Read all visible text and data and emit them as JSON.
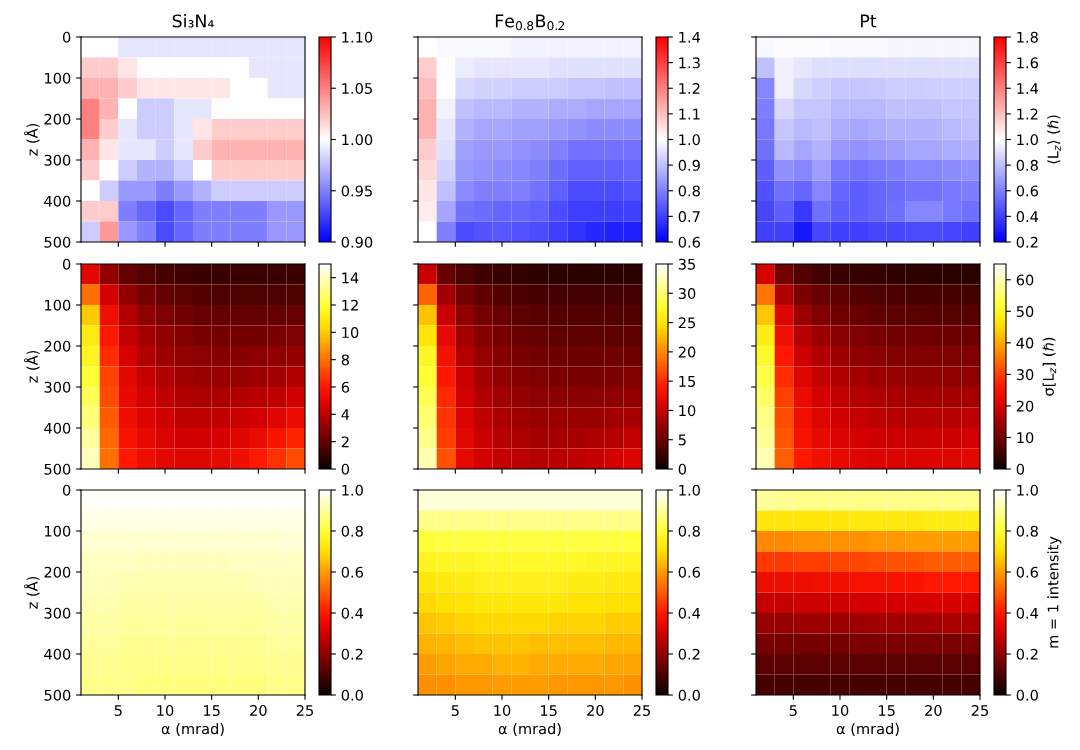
{
  "chart_data": [
    {
      "type": "heatmap",
      "title": "Si₃N₄",
      "ylabel": "z (Å)",
      "x": [
        2,
        4,
        6,
        8,
        10,
        12,
        14,
        16,
        18,
        20,
        22,
        24
      ],
      "y": [
        25,
        75,
        125,
        175,
        225,
        275,
        325,
        375,
        425,
        475
      ],
      "cells": [
        [
          1.0,
          1.0,
          0.99,
          0.99,
          0.99,
          0.99,
          0.99,
          0.99,
          0.99,
          0.99,
          0.99,
          0.99
        ],
        [
          1.02,
          1.02,
          1.01,
          1.0,
          1.0,
          1.0,
          1.0,
          1.0,
          1.0,
          0.99,
          0.99,
          0.99
        ],
        [
          1.03,
          1.03,
          1.02,
          1.01,
          1.01,
          1.01,
          1.01,
          1.01,
          1.0,
          1.0,
          0.99,
          0.99
        ],
        [
          1.05,
          1.03,
          1.0,
          0.98,
          0.98,
          0.99,
          0.99,
          1.0,
          1.0,
          1.0,
          1.0,
          1.0
        ],
        [
          1.05,
          1.02,
          0.99,
          0.98,
          0.98,
          0.99,
          1.01,
          1.02,
          1.02,
          1.02,
          1.02,
          1.02
        ],
        [
          1.03,
          1.01,
          0.99,
          0.99,
          0.98,
          0.99,
          1.02,
          1.03,
          1.03,
          1.03,
          1.03,
          1.03
        ],
        [
          1.02,
          1.0,
          0.98,
          0.97,
          0.97,
          0.98,
          1.0,
          1.02,
          1.02,
          1.02,
          1.02,
          1.02
        ],
        [
          1.0,
          0.98,
          0.96,
          0.96,
          0.95,
          0.96,
          0.97,
          0.98,
          0.98,
          0.98,
          0.98,
          0.98
        ],
        [
          1.02,
          1.02,
          0.95,
          0.94,
          0.93,
          0.94,
          0.95,
          0.95,
          0.95,
          0.95,
          0.96,
          0.96
        ],
        [
          0.98,
          1.04,
          0.96,
          0.95,
          0.93,
          0.94,
          0.95,
          0.95,
          0.95,
          0.95,
          0.96,
          0.96
        ]
      ],
      "colors": [
        "#0000ff",
        "#ffffff",
        "#ff0000"
      ],
      "clim": [
        0.9,
        1.1
      ],
      "cticks": [
        {
          "value": 0.9,
          "label": "0.90"
        },
        {
          "value": 0.95,
          "label": "0.95"
        },
        {
          "value": 1,
          "label": "1.00"
        },
        {
          "value": 1.05,
          "label": "1.05"
        },
        {
          "value": 1.1,
          "label": "1.10"
        }
      ],
      "xlim": [
        1,
        25
      ],
      "xticks": [
        5,
        10,
        15,
        20,
        25
      ],
      "ylim": [
        500,
        0
      ],
      "yticks": [
        0,
        100,
        200,
        300,
        400,
        500
      ],
      "tick_labels": "y"
    },
    {
      "type": "heatmap",
      "title": "Fe$_{0.8}$B$_{0.2}$",
      "x": [
        2,
        4,
        6,
        8,
        10,
        12,
        14,
        16,
        18,
        20,
        22,
        24
      ],
      "y": [
        25,
        75,
        125,
        175,
        225,
        275,
        325,
        375,
        425,
        475
      ],
      "cells": [
        [
          1.0,
          0.99,
          0.99,
          0.99,
          0.99,
          0.98,
          0.98,
          0.98,
          0.98,
          0.98,
          0.98,
          0.98
        ],
        [
          1.08,
          1.0,
          0.97,
          0.96,
          0.96,
          0.96,
          0.96,
          0.95,
          0.95,
          0.95,
          0.95,
          0.95
        ],
        [
          1.1,
          1.0,
          0.94,
          0.93,
          0.93,
          0.92,
          0.92,
          0.92,
          0.91,
          0.91,
          0.9,
          0.9
        ],
        [
          1.12,
          0.98,
          0.9,
          0.89,
          0.89,
          0.88,
          0.88,
          0.87,
          0.87,
          0.86,
          0.86,
          0.86
        ],
        [
          1.12,
          0.96,
          0.88,
          0.86,
          0.86,
          0.85,
          0.85,
          0.84,
          0.83,
          0.82,
          0.82,
          0.82
        ],
        [
          1.08,
          0.95,
          0.85,
          0.84,
          0.84,
          0.83,
          0.82,
          0.8,
          0.78,
          0.78,
          0.78,
          0.78
        ],
        [
          1.06,
          0.93,
          0.84,
          0.83,
          0.82,
          0.81,
          0.8,
          0.77,
          0.75,
          0.75,
          0.75,
          0.76
        ],
        [
          1.04,
          0.9,
          0.82,
          0.8,
          0.8,
          0.8,
          0.78,
          0.75,
          0.72,
          0.72,
          0.72,
          0.73
        ],
        [
          1.03,
          0.86,
          0.78,
          0.77,
          0.76,
          0.76,
          0.75,
          0.72,
          0.7,
          0.7,
          0.7,
          0.7
        ],
        [
          1.0,
          0.8,
          0.72,
          0.73,
          0.74,
          0.73,
          0.72,
          0.7,
          0.68,
          0.66,
          0.65,
          0.65
        ]
      ],
      "colors": [
        "#0000ff",
        "#ffffff",
        "#ff0000"
      ],
      "clim": [
        0.6,
        1.4
      ],
      "cticks": [
        0.6,
        0.7,
        0.8,
        0.9,
        {
          "value": 1,
          "label": "1.0"
        },
        1.1,
        1.2,
        1.3,
        1.4
      ],
      "xlim": [
        1,
        25
      ],
      "xticks": [
        5,
        10,
        15,
        20,
        25
      ],
      "ylim": [
        500,
        0
      ],
      "yticks": [
        0,
        100,
        200,
        300,
        400,
        500
      ],
      "tick_labels": false
    },
    {
      "type": "heatmap",
      "title": "Pt",
      "clabel": "⟨L$_{z}$⟩ (ℏ)",
      "x": [
        2,
        4,
        6,
        8,
        10,
        12,
        14,
        16,
        18,
        20,
        22,
        24
      ],
      "y": [
        25,
        75,
        125,
        175,
        225,
        275,
        325,
        375,
        425,
        475
      ],
      "cells": [
        [
          0.98,
          0.99,
          0.99,
          0.99,
          0.98,
          0.98,
          0.98,
          0.97,
          0.97,
          0.97,
          0.97,
          0.97
        ],
        [
          0.8,
          0.95,
          0.92,
          0.9,
          0.9,
          0.9,
          0.9,
          0.9,
          0.9,
          0.9,
          0.9,
          0.9
        ],
        [
          0.62,
          0.95,
          0.88,
          0.85,
          0.82,
          0.82,
          0.83,
          0.84,
          0.84,
          0.85,
          0.85,
          0.85
        ],
        [
          0.6,
          0.88,
          0.82,
          0.82,
          0.78,
          0.78,
          0.78,
          0.8,
          0.8,
          0.8,
          0.82,
          0.82
        ],
        [
          0.58,
          0.82,
          0.78,
          0.8,
          0.74,
          0.72,
          0.74,
          0.76,
          0.76,
          0.76,
          0.78,
          0.8
        ],
        [
          0.55,
          0.78,
          0.72,
          0.76,
          0.68,
          0.66,
          0.68,
          0.7,
          0.72,
          0.72,
          0.74,
          0.75
        ],
        [
          0.5,
          0.65,
          0.62,
          0.7,
          0.58,
          0.56,
          0.58,
          0.6,
          0.62,
          0.62,
          0.64,
          0.65
        ],
        [
          0.45,
          0.55,
          0.52,
          0.62,
          0.52,
          0.5,
          0.52,
          0.54,
          0.56,
          0.56,
          0.58,
          0.6
        ],
        [
          0.42,
          0.5,
          0.38,
          0.55,
          0.5,
          0.5,
          0.52,
          0.55,
          0.62,
          0.62,
          0.58,
          0.55
        ],
        [
          0.4,
          0.4,
          0.28,
          0.42,
          0.4,
          0.4,
          0.42,
          0.42,
          0.44,
          0.44,
          0.42,
          0.4
        ]
      ],
      "colors": [
        "#0000ff",
        "#ffffff",
        "#ff0000"
      ],
      "clim": [
        0.2,
        1.8
      ],
      "cticks": [
        0.2,
        0.4,
        0.6,
        0.8,
        {
          "value": 1,
          "label": "1.0"
        },
        1.2,
        1.4,
        1.6,
        1.8
      ],
      "xlim": [
        1,
        25
      ],
      "xticks": [
        5,
        10,
        15,
        20,
        25
      ],
      "ylim": [
        500,
        0
      ],
      "yticks": [
        0,
        100,
        200,
        300,
        400,
        500
      ],
      "tick_labels": false
    },
    {
      "type": "heatmap",
      "ylabel": "z (Å)",
      "x": [
        2,
        4,
        6,
        8,
        10,
        12,
        14,
        16,
        18,
        20,
        22,
        24
      ],
      "y": [
        25,
        75,
        125,
        175,
        225,
        275,
        325,
        375,
        425,
        475
      ],
      "cells": [
        [
          5.0,
          3.0,
          2.0,
          1.6,
          1.4,
          1.2,
          1.1,
          1.0,
          1.0,
          1.0,
          1.0,
          1.0
        ],
        [
          8.0,
          4.5,
          3.0,
          2.4,
          2.0,
          1.8,
          1.6,
          1.5,
          1.5,
          1.5,
          1.5,
          1.5
        ],
        [
          10.0,
          5.5,
          3.8,
          3.0,
          2.6,
          2.3,
          2.1,
          2.0,
          2.0,
          2.0,
          2.0,
          2.1
        ],
        [
          11.0,
          6.0,
          4.2,
          3.5,
          3.0,
          2.7,
          2.5,
          2.4,
          2.4,
          2.4,
          2.5,
          2.6
        ],
        [
          11.5,
          6.5,
          4.6,
          3.8,
          3.3,
          3.1,
          2.9,
          2.8,
          2.8,
          2.9,
          3.0,
          3.1
        ],
        [
          12.0,
          7.0,
          5.0,
          4.2,
          3.7,
          3.4,
          3.2,
          3.2,
          3.2,
          3.3,
          3.5,
          3.7
        ],
        [
          12.5,
          7.2,
          5.2,
          4.5,
          4.0,
          3.7,
          3.6,
          3.6,
          3.7,
          3.9,
          4.1,
          4.4
        ],
        [
          13.0,
          7.5,
          5.5,
          4.8,
          4.4,
          4.1,
          4.0,
          4.1,
          4.3,
          4.5,
          4.9,
          5.3
        ],
        [
          13.5,
          7.8,
          5.8,
          5.1,
          4.7,
          4.5,
          4.5,
          4.6,
          4.9,
          5.3,
          5.8,
          6.3
        ],
        [
          14.0,
          8.0,
          6.0,
          5.4,
          5.0,
          4.9,
          4.9,
          5.1,
          5.5,
          6.0,
          6.6,
          7.2
        ]
      ],
      "colors": [
        "#0b0000",
        "#4e0000",
        "#900000",
        "#d30000",
        "#ff1700",
        "#ff5a00",
        "#ff9d00",
        "#ffe000",
        "#ffff36",
        "#ffff9b",
        "#ffffff"
      ],
      "clim": [
        0,
        15
      ],
      "cticks": [
        0,
        2,
        4,
        6,
        8,
        10,
        12,
        14
      ],
      "xlim": [
        1,
        25
      ],
      "xticks": [
        5,
        10,
        15,
        20,
        25
      ],
      "ylim": [
        500,
        0
      ],
      "yticks": [
        0,
        100,
        200,
        300,
        400,
        500
      ],
      "tick_labels": "y"
    },
    {
      "type": "heatmap",
      "x": [
        2,
        4,
        6,
        8,
        10,
        12,
        14,
        16,
        18,
        20,
        22,
        24
      ],
      "y": [
        25,
        75,
        125,
        175,
        225,
        275,
        325,
        375,
        425,
        475
      ],
      "cells": [
        [
          10,
          5,
          3.5,
          2.8,
          2.4,
          2.1,
          2.0,
          1.9,
          1.8,
          1.8,
          1.8,
          1.8
        ],
        [
          18,
          8,
          5.5,
          4.4,
          3.8,
          3.4,
          3.1,
          3.0,
          2.9,
          2.9,
          2.9,
          2.9
        ],
        [
          23,
          10,
          7.0,
          5.6,
          4.8,
          4.3,
          4.0,
          3.8,
          3.7,
          3.7,
          3.7,
          3.7
        ],
        [
          25,
          12,
          8.0,
          6.5,
          5.6,
          5.0,
          4.7,
          4.5,
          4.4,
          4.4,
          4.4,
          4.5
        ],
        [
          27,
          13,
          9.0,
          7.3,
          6.4,
          5.8,
          5.4,
          5.2,
          5.1,
          5.1,
          5.2,
          5.3
        ],
        [
          28,
          14,
          10.0,
          8.1,
          7.1,
          6.5,
          6.1,
          5.9,
          5.8,
          5.8,
          6.0,
          6.2
        ],
        [
          29,
          15,
          10.5,
          8.8,
          7.8,
          7.2,
          6.8,
          6.6,
          6.6,
          6.7,
          6.9,
          7.2
        ],
        [
          30,
          15.5,
          11.0,
          9.4,
          8.4,
          7.9,
          7.5,
          7.4,
          7.4,
          7.6,
          7.9,
          8.3
        ],
        [
          31,
          16,
          11.5,
          10.0,
          9.0,
          8.5,
          8.2,
          8.2,
          8.3,
          8.6,
          9.0,
          9.6
        ],
        [
          32,
          17,
          12.0,
          10.5,
          9.6,
          9.2,
          9.0,
          9.1,
          9.3,
          9.8,
          10.4,
          11.2
        ]
      ],
      "colors": [
        "#0b0000",
        "#4e0000",
        "#900000",
        "#d30000",
        "#ff1700",
        "#ff5a00",
        "#ff9d00",
        "#ffe000",
        "#ffff36",
        "#ffff9b",
        "#ffffff"
      ],
      "clim": [
        0,
        35
      ],
      "cticks": [
        0,
        5,
        10,
        15,
        20,
        25,
        30,
        35
      ],
      "xlim": [
        1,
        25
      ],
      "xticks": [
        5,
        10,
        15,
        20,
        25
      ],
      "ylim": [
        500,
        0
      ],
      "yticks": [
        0,
        100,
        200,
        300,
        400,
        500
      ],
      "tick_labels": false
    },
    {
      "type": "heatmap",
      "clabel": "σ[L$_{z}$] (ℏ)",
      "x": [
        2,
        4,
        6,
        8,
        10,
        12,
        14,
        16,
        18,
        20,
        22,
        24
      ],
      "y": [
        25,
        75,
        125,
        175,
        225,
        275,
        325,
        375,
        425,
        475
      ],
      "cells": [
        [
          20,
          10,
          7,
          5.5,
          4.8,
          4.3,
          4.0,
          3.8,
          3.6,
          3.5,
          3.5,
          3.5
        ],
        [
          35,
          16,
          11,
          9,
          8,
          7.2,
          6.7,
          6.3,
          6.0,
          5.9,
          5.8,
          5.8
        ],
        [
          43,
          21,
          14,
          11.5,
          10,
          9.2,
          8.6,
          8.1,
          7.8,
          7.6,
          7.5,
          7.5
        ],
        [
          48,
          24,
          17,
          14,
          12.3,
          11.3,
          10.5,
          10,
          9.7,
          9.5,
          9.4,
          9.4
        ],
        [
          51,
          26,
          19,
          16,
          14.3,
          13.2,
          12.4,
          11.9,
          11.5,
          11.3,
          11.2,
          11.3
        ],
        [
          53,
          28,
          21,
          18,
          16.2,
          15,
          14.2,
          13.6,
          13.3,
          13.1,
          13.1,
          13.2
        ],
        [
          55,
          30,
          23,
          19.5,
          17.8,
          16.6,
          15.8,
          15.3,
          15,
          14.9,
          15,
          15.2
        ],
        [
          57,
          31,
          24,
          21,
          19.3,
          18.2,
          17.4,
          16.9,
          16.7,
          16.7,
          16.9,
          17.2
        ],
        [
          58,
          32,
          25,
          22.5,
          20.8,
          19.7,
          19,
          18.6,
          18.5,
          18.6,
          18.9,
          19.4
        ],
        [
          60,
          33,
          26,
          24,
          22.3,
          21.3,
          20.7,
          20.4,
          20.4,
          20.6,
          21,
          21.6
        ]
      ],
      "colors": [
        "#0b0000",
        "#4e0000",
        "#900000",
        "#d30000",
        "#ff1700",
        "#ff5a00",
        "#ff9d00",
        "#ffe000",
        "#ffff36",
        "#ffff9b",
        "#ffffff"
      ],
      "clim": [
        0,
        65
      ],
      "cticks": [
        0,
        10,
        20,
        30,
        40,
        50,
        60
      ],
      "xlim": [
        1,
        25
      ],
      "xticks": [
        5,
        10,
        15,
        20,
        25
      ],
      "ylim": [
        500,
        0
      ],
      "yticks": [
        0,
        100,
        200,
        300,
        400,
        500
      ],
      "tick_labels": false
    },
    {
      "type": "heatmap",
      "xlabel": "α (mrad)",
      "ylabel": "z (Å)",
      "x": [
        2,
        4,
        6,
        8,
        10,
        12,
        14,
        16,
        18,
        20,
        22,
        24
      ],
      "y": [
        25,
        75,
        125,
        175,
        225,
        275,
        325,
        375,
        425,
        475
      ],
      "cells": [
        [
          0.99,
          0.99,
          0.99,
          0.99,
          0.99,
          0.99,
          0.99,
          0.99,
          0.99,
          0.99,
          0.99,
          0.99
        ],
        [
          0.97,
          0.97,
          0.97,
          0.97,
          0.97,
          0.97,
          0.97,
          0.97,
          0.97,
          0.97,
          0.97,
          0.97
        ],
        [
          0.95,
          0.95,
          0.95,
          0.95,
          0.95,
          0.95,
          0.95,
          0.95,
          0.95,
          0.95,
          0.95,
          0.96
        ],
        [
          0.94,
          0.94,
          0.94,
          0.93,
          0.93,
          0.93,
          0.93,
          0.93,
          0.94,
          0.94,
          0.94,
          0.94
        ],
        [
          0.93,
          0.93,
          0.92,
          0.92,
          0.92,
          0.92,
          0.92,
          0.92,
          0.92,
          0.93,
          0.93,
          0.93
        ],
        [
          0.92,
          0.92,
          0.91,
          0.91,
          0.91,
          0.91,
          0.91,
          0.91,
          0.91,
          0.91,
          0.92,
          0.92
        ],
        [
          0.91,
          0.91,
          0.9,
          0.9,
          0.9,
          0.9,
          0.9,
          0.9,
          0.9,
          0.9,
          0.91,
          0.91
        ],
        [
          0.9,
          0.9,
          0.89,
          0.89,
          0.89,
          0.89,
          0.89,
          0.89,
          0.89,
          0.89,
          0.9,
          0.9
        ],
        [
          0.89,
          0.89,
          0.88,
          0.88,
          0.88,
          0.88,
          0.88,
          0.88,
          0.88,
          0.88,
          0.89,
          0.89
        ],
        [
          0.88,
          0.88,
          0.88,
          0.87,
          0.87,
          0.87,
          0.87,
          0.87,
          0.87,
          0.87,
          0.88,
          0.88
        ]
      ],
      "colors": [
        "#0b0000",
        "#4e0000",
        "#900000",
        "#d30000",
        "#ff1700",
        "#ff5a00",
        "#ff9d00",
        "#ffe000",
        "#ffff36",
        "#ffff9b",
        "#ffffff"
      ],
      "clim": [
        0,
        1
      ],
      "cticks": [
        {
          "value": 0,
          "label": "0.0"
        },
        0.2,
        0.4,
        0.6,
        0.8,
        {
          "value": 1,
          "label": "1.0"
        }
      ],
      "xlim": [
        1,
        25
      ],
      "xticks": [
        5,
        10,
        15,
        20,
        25
      ],
      "ylim": [
        500,
        0
      ],
      "yticks": [
        0,
        100,
        200,
        300,
        400,
        500
      ]
    },
    {
      "type": "heatmap",
      "xlabel": "α (mrad)",
      "x": [
        2,
        4,
        6,
        8,
        10,
        12,
        14,
        16,
        18,
        20,
        22,
        24
      ],
      "y": [
        25,
        75,
        125,
        175,
        225,
        275,
        325,
        375,
        425,
        475
      ],
      "cells": [
        [
          0.96,
          0.96,
          0.96,
          0.96,
          0.96,
          0.96,
          0.96,
          0.96,
          0.96,
          0.96,
          0.96,
          0.96
        ],
        [
          0.88,
          0.88,
          0.88,
          0.88,
          0.88,
          0.88,
          0.88,
          0.88,
          0.88,
          0.88,
          0.88,
          0.88
        ],
        [
          0.8,
          0.81,
          0.81,
          0.81,
          0.81,
          0.81,
          0.81,
          0.81,
          0.81,
          0.81,
          0.81,
          0.8
        ],
        [
          0.76,
          0.77,
          0.77,
          0.78,
          0.78,
          0.78,
          0.78,
          0.78,
          0.78,
          0.77,
          0.77,
          0.76
        ],
        [
          0.72,
          0.73,
          0.74,
          0.75,
          0.75,
          0.75,
          0.75,
          0.75,
          0.74,
          0.74,
          0.73,
          0.73
        ],
        [
          0.69,
          0.7,
          0.71,
          0.72,
          0.72,
          0.72,
          0.72,
          0.72,
          0.71,
          0.71,
          0.7,
          0.7
        ],
        [
          0.66,
          0.67,
          0.68,
          0.69,
          0.69,
          0.69,
          0.69,
          0.68,
          0.68,
          0.68,
          0.67,
          0.67
        ],
        [
          0.63,
          0.64,
          0.65,
          0.66,
          0.66,
          0.66,
          0.65,
          0.65,
          0.65,
          0.65,
          0.64,
          0.64
        ],
        [
          0.6,
          0.61,
          0.62,
          0.62,
          0.63,
          0.63,
          0.62,
          0.62,
          0.62,
          0.62,
          0.61,
          0.61
        ],
        [
          0.58,
          0.58,
          0.59,
          0.59,
          0.6,
          0.6,
          0.6,
          0.59,
          0.59,
          0.59,
          0.59,
          0.58
        ]
      ],
      "colors": [
        "#0b0000",
        "#4e0000",
        "#900000",
        "#d30000",
        "#ff1700",
        "#ff5a00",
        "#ff9d00",
        "#ffe000",
        "#ffff36",
        "#ffff9b",
        "#ffffff"
      ],
      "clim": [
        0,
        1
      ],
      "cticks": [
        {
          "value": 0,
          "label": "0.0"
        },
        0.2,
        0.4,
        0.6,
        0.8,
        {
          "value": 1,
          "label": "1.0"
        }
      ],
      "xlim": [
        1,
        25
      ],
      "xticks": [
        5,
        10,
        15,
        20,
        25
      ],
      "ylim": [
        500,
        0
      ],
      "yticks": [
        0,
        100,
        200,
        300,
        400,
        500
      ],
      "tick_labels": "x"
    },
    {
      "type": "heatmap",
      "xlabel": "α (mrad)",
      "clabel": "m = 1 intensity",
      "x": [
        2,
        4,
        6,
        8,
        10,
        12,
        14,
        16,
        18,
        20,
        22,
        24
      ],
      "y": [
        25,
        75,
        125,
        175,
        225,
        275,
        325,
        375,
        425,
        475
      ],
      "cells": [
        [
          0.9,
          0.89,
          0.88,
          0.88,
          0.88,
          0.88,
          0.88,
          0.88,
          0.88,
          0.88,
          0.88,
          0.88
        ],
        [
          0.72,
          0.72,
          0.72,
          0.72,
          0.72,
          0.73,
          0.73,
          0.73,
          0.73,
          0.74,
          0.74,
          0.74
        ],
        [
          0.57,
          0.57,
          0.58,
          0.58,
          0.58,
          0.58,
          0.59,
          0.59,
          0.6,
          0.6,
          0.6,
          0.6
        ],
        [
          0.45,
          0.45,
          0.46,
          0.46,
          0.47,
          0.47,
          0.48,
          0.49,
          0.49,
          0.5,
          0.5,
          0.5
        ],
        [
          0.36,
          0.36,
          0.36,
          0.37,
          0.37,
          0.38,
          0.38,
          0.39,
          0.39,
          0.4,
          0.4,
          0.4
        ],
        [
          0.28,
          0.28,
          0.29,
          0.29,
          0.29,
          0.3,
          0.3,
          0.3,
          0.31,
          0.31,
          0.31,
          0.31
        ],
        [
          0.21,
          0.21,
          0.22,
          0.22,
          0.22,
          0.22,
          0.23,
          0.23,
          0.23,
          0.23,
          0.24,
          0.24
        ],
        [
          0.16,
          0.16,
          0.16,
          0.16,
          0.16,
          0.17,
          0.17,
          0.17,
          0.17,
          0.17,
          0.17,
          0.17
        ],
        [
          0.12,
          0.12,
          0.12,
          0.12,
          0.12,
          0.12,
          0.12,
          0.12,
          0.12,
          0.12,
          0.12,
          0.12
        ],
        [
          0.09,
          0.09,
          0.09,
          0.09,
          0.09,
          0.09,
          0.09,
          0.09,
          0.09,
          0.09,
          0.09,
          0.09
        ]
      ],
      "colors": [
        "#0b0000",
        "#4e0000",
        "#900000",
        "#d30000",
        "#ff1700",
        "#ff5a00",
        "#ff9d00",
        "#ffe000",
        "#ffff36",
        "#ffff9b",
        "#ffffff"
      ],
      "clim": [
        0,
        1
      ],
      "cticks": [
        {
          "value": 0,
          "label": "0.0"
        },
        0.2,
        0.4,
        0.6,
        0.8,
        {
          "value": 1,
          "label": "1.0"
        }
      ],
      "xlim": [
        1,
        25
      ],
      "xticks": [
        5,
        10,
        15,
        20,
        25
      ],
      "ylim": [
        500,
        0
      ],
      "yticks": [
        0,
        100,
        200,
        300,
        400,
        500
      ],
      "tick_labels": "x"
    }
  ]
}
